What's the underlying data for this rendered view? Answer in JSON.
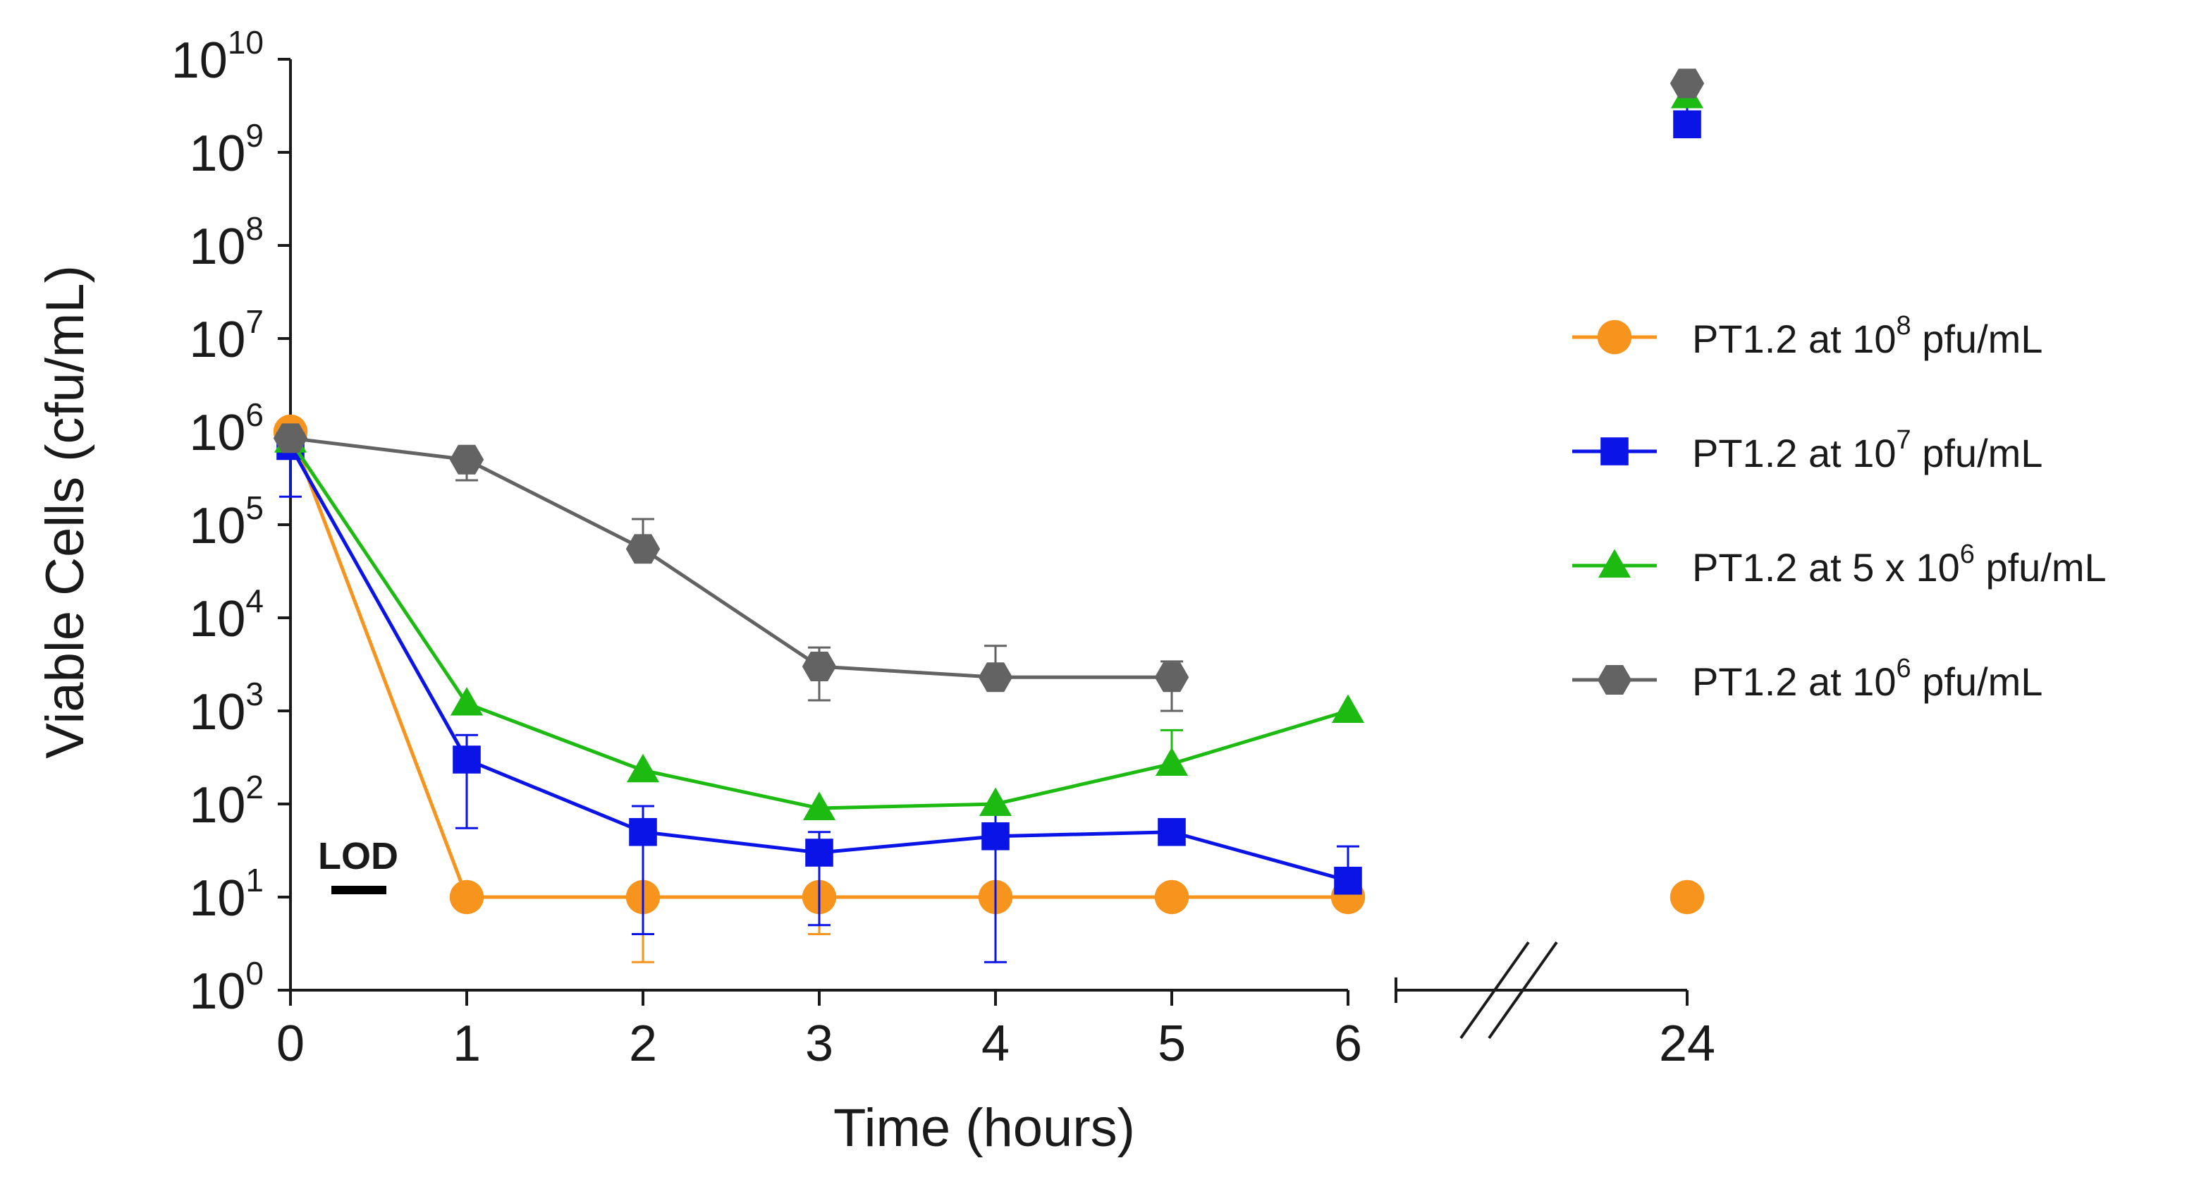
{
  "chart_data": {
    "type": "line",
    "title": "",
    "xlabel": "Time (hours)",
    "ylabel": "Viable Cells (cfu/mL)",
    "yscale": "log",
    "ylim": [
      1,
      10000000000
    ],
    "xlim": [
      0,
      24
    ],
    "axis_break": "between 6 and 24",
    "x_ticks": [
      "0",
      "1",
      "2",
      "3",
      "4",
      "5",
      "6",
      "24"
    ],
    "y_ticks": [
      {
        "base": "10",
        "exp": "0"
      },
      {
        "base": "10",
        "exp": "1"
      },
      {
        "base": "10",
        "exp": "2"
      },
      {
        "base": "10",
        "exp": "3"
      },
      {
        "base": "10",
        "exp": "4"
      },
      {
        "base": "10",
        "exp": "5"
      },
      {
        "base": "10",
        "exp": "6"
      },
      {
        "base": "10",
        "exp": "7"
      },
      {
        "base": "10",
        "exp": "8"
      },
      {
        "base": "10",
        "exp": "9"
      },
      {
        "base": "10",
        "exp": "10"
      }
    ],
    "lod_label": "LOD",
    "lod_value": 10,
    "legend_position": "right",
    "series": [
      {
        "name": "PT1.2 at 10^8 pfu/mL",
        "legend_parts": [
          "PT1.2 at 10",
          "8",
          " pfu/mL"
        ],
        "color": "#f7941d",
        "marker": "circle",
        "x": [
          0,
          1,
          2,
          3,
          4,
          5,
          6,
          24
        ],
        "y": [
          1000000,
          10,
          10,
          10,
          10,
          10,
          10,
          10
        ],
        "err_hi": [
          null,
          null,
          null,
          null,
          null,
          null,
          null,
          null
        ],
        "err_lo": [
          null,
          null,
          2,
          4,
          null,
          null,
          null,
          null
        ],
        "connect_last": false
      },
      {
        "name": "PT1.2 at 10^7 pfu/mL",
        "legend_parts": [
          "PT1.2 at 10",
          "7",
          " pfu/mL"
        ],
        "color": "#0a14e6",
        "marker": "square",
        "x": [
          0,
          1,
          2,
          3,
          4,
          5,
          6,
          24
        ],
        "y": [
          700000,
          300,
          50,
          30,
          45,
          50,
          15,
          2000000000
        ],
        "err_hi": [
          null,
          550,
          95,
          50,
          80,
          null,
          35,
          4500000000
        ],
        "err_lo": [
          200000,
          55,
          4,
          5,
          2,
          null,
          null,
          null
        ],
        "connect_last": false
      },
      {
        "name": "PT1.2 at 5 x 10^6 pfu/mL",
        "legend_parts": [
          "PT1.2 at 5 x 10",
          "6",
          " pfu/mL"
        ],
        "color": "#1dbb12",
        "marker": "triangle",
        "x": [
          0,
          1,
          2,
          3,
          4,
          5,
          6,
          24
        ],
        "y": [
          800000,
          1200,
          230,
          90,
          100,
          270,
          1000,
          4000000000
        ],
        "err_hi": [
          null,
          null,
          null,
          null,
          null,
          620,
          null,
          null
        ],
        "err_lo": [
          null,
          null,
          null,
          null,
          null,
          null,
          null,
          null
        ],
        "connect_last": false
      },
      {
        "name": "PT1.2 at 10^6 pfu/mL",
        "legend_parts": [
          "PT1.2 at 10",
          "6",
          " pfu/mL"
        ],
        "color": "#636363",
        "marker": "hexagon",
        "x": [
          0,
          1,
          2,
          3,
          4,
          5,
          24
        ],
        "y": [
          850000,
          500000,
          55000,
          3000,
          2300,
          2300,
          5500000000
        ],
        "err_hi": [
          null,
          null,
          115000,
          4800,
          5000,
          3400,
          null
        ],
        "err_lo": [
          null,
          300000,
          null,
          1300,
          null,
          1000,
          null
        ],
        "connect_last": false
      }
    ]
  }
}
